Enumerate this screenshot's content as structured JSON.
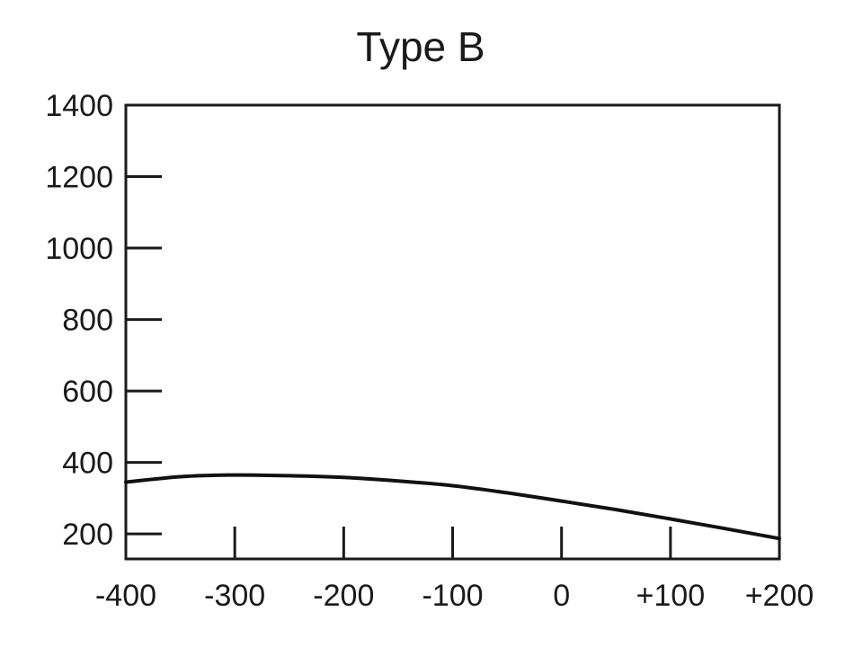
{
  "chart_data": {
    "type": "line",
    "title": "Type B",
    "xlabel": "",
    "ylabel": "",
    "xlim": [
      -400,
      200
    ],
    "ylim": [
      130,
      1400
    ],
    "x_ticks": [
      {
        "value": -400,
        "label": "-400"
      },
      {
        "value": -300,
        "label": "-300"
      },
      {
        "value": -200,
        "label": "-200"
      },
      {
        "value": -100,
        "label": "-100"
      },
      {
        "value": 0,
        "label": "0"
      },
      {
        "value": 100,
        "label": "+100"
      },
      {
        "value": 200,
        "label": "+200"
      }
    ],
    "y_ticks": [
      {
        "value": 1400,
        "label": "1400"
      },
      {
        "value": 1200,
        "label": "1200"
      },
      {
        "value": 1000,
        "label": "1000"
      },
      {
        "value": 800,
        "label": "800"
      },
      {
        "value": 600,
        "label": "600"
      },
      {
        "value": 400,
        "label": "400"
      },
      {
        "value": 200,
        "label": "200"
      }
    ],
    "grid": false,
    "legend": "none",
    "series": [
      {
        "color": "#111111",
        "x": [
          -400,
          -350,
          -300,
          -250,
          -200,
          -150,
          -100,
          -50,
          0,
          50,
          100,
          150,
          200
        ],
        "y": [
          345,
          360,
          365,
          363,
          358,
          348,
          335,
          315,
          292,
          268,
          242,
          215,
          187
        ]
      }
    ]
  }
}
